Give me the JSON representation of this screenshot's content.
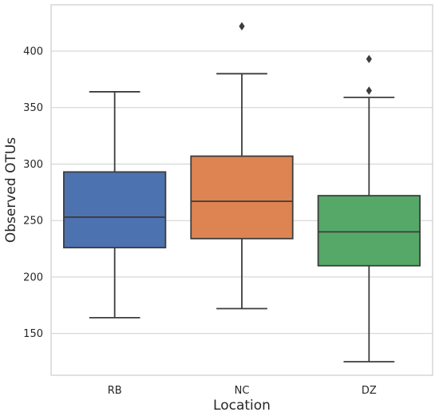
{
  "chart_data": {
    "type": "box",
    "xlabel": "Location",
    "ylabel": "Observed OTUs",
    "ylim": [
      113,
      441
    ],
    "yticks": [
      150,
      200,
      250,
      300,
      350,
      400
    ],
    "grid": "horizontal",
    "categories": [
      "RB",
      "NC",
      "DZ"
    ],
    "series": [
      {
        "category": "RB",
        "color": "#4c72b0",
        "whisker_low": 164,
        "q1": 226,
        "median": 253,
        "q3": 293,
        "whisker_high": 364,
        "outliers": []
      },
      {
        "category": "NC",
        "color": "#dd8452",
        "whisker_low": 172,
        "q1": 234,
        "median": 267,
        "q3": 307,
        "whisker_high": 380,
        "outliers": [
          422
        ]
      },
      {
        "category": "DZ",
        "color": "#55a868",
        "whisker_low": 125,
        "q1": 210,
        "median": 240,
        "q3": 272,
        "whisker_high": 359,
        "outliers": [
          365,
          393
        ]
      }
    ]
  }
}
